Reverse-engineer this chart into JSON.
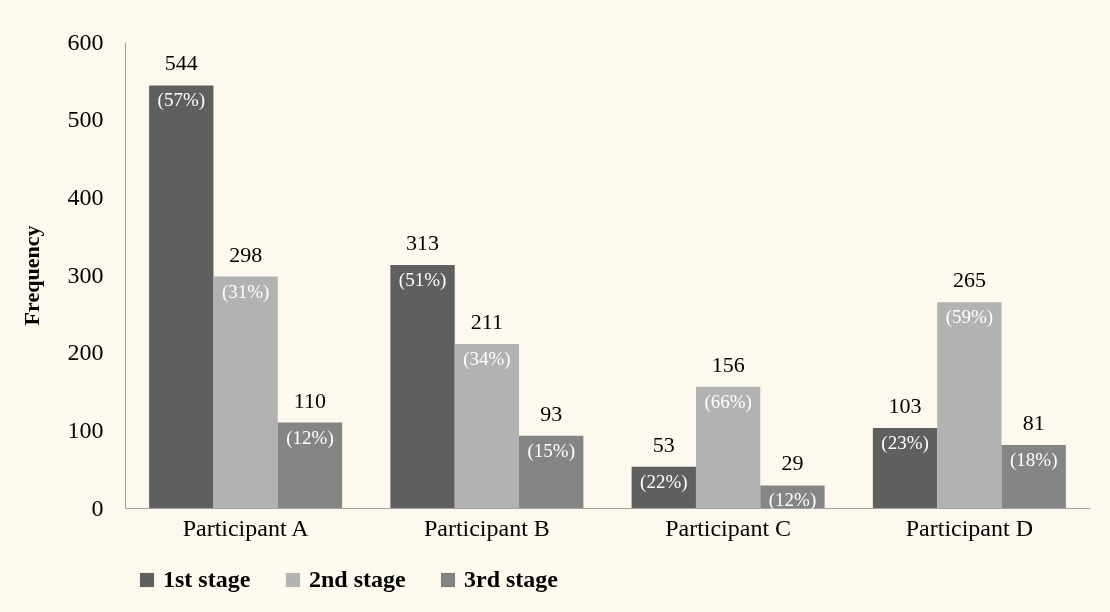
{
  "chart_data": {
    "type": "bar",
    "ylabel": "Frequency",
    "categories": [
      "Participant A",
      "Participant B",
      "Participant C",
      "Participant D"
    ],
    "series": [
      {
        "name": "1st stage",
        "color": "#5f5f5f",
        "values": [
          544,
          313,
          53,
          103
        ],
        "value_labels": [
          "544\n(57%)",
          "313\n(51%)",
          "53\n(22%)",
          "103\n(23%)"
        ]
      },
      {
        "name": "2nd stage",
        "color": "#b2b2b2",
        "values": [
          298,
          211,
          156,
          265
        ],
        "value_labels": [
          "298\n(31%)",
          "211\n(34%)",
          "156\n(66%)",
          "265\n(59%)"
        ]
      },
      {
        "name": "3rd stage",
        "color": "#858585",
        "values": [
          110,
          93,
          29,
          81
        ],
        "value_labels": [
          "110\n(12%)",
          "93\n(15%)",
          "29\n(12%)",
          "81\n(18%)"
        ]
      }
    ],
    "ylim": [
      0,
      600
    ],
    "yticks": [
      0,
      100,
      200,
      300,
      400,
      500,
      600
    ],
    "grid": false,
    "legend": "bottom"
  }
}
